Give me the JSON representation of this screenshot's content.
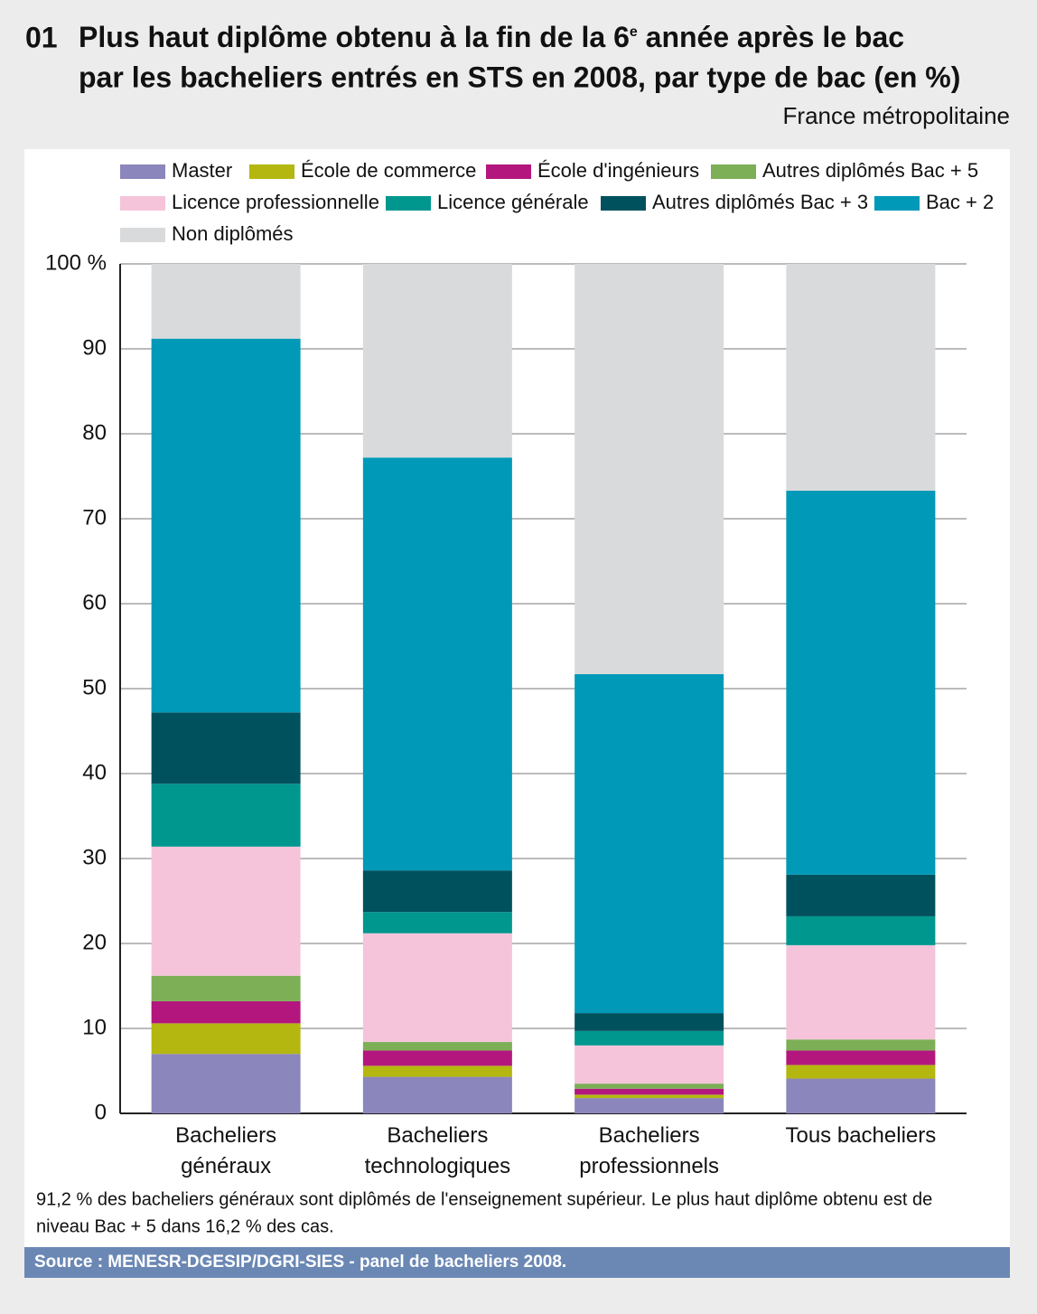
{
  "chart_data": {
    "type": "stacked_bar",
    "number": "01",
    "title": [
      "Plus haut diplôme obtenu à la fin de la 6",
      "e",
      " année après le bac",
      "par les bacheliers entrés en STS en 2008, par type de bac (en %)"
    ],
    "subtitle": "France métropolitaine",
    "categories": [
      [
        "Bacheliers",
        "généraux"
      ],
      [
        "Bacheliers",
        "technologiques"
      ],
      [
        "Bacheliers",
        "professionnels"
      ],
      [
        "Tous bacheliers"
      ]
    ],
    "series": [
      {
        "name": "Master",
        "color": "#8b86bb",
        "values": [
          7.0,
          4.3,
          1.8,
          4.1
        ]
      },
      {
        "name": "École de commerce",
        "color": "#b3b70f",
        "values": [
          3.6,
          1.3,
          0.4,
          1.6
        ]
      },
      {
        "name": "École d'ingénieurs",
        "color": "#b3177e",
        "values": [
          2.6,
          1.8,
          0.7,
          1.7
        ]
      },
      {
        "name": "Autres diplômés Bac + 5",
        "color": "#7daf56",
        "values": [
          3.0,
          1.0,
          0.6,
          1.3
        ]
      },
      {
        "name": "Licence professionnelle",
        "color": "#f5c4da",
        "values": [
          15.2,
          12.8,
          4.5,
          11.1
        ]
      },
      {
        "name": "Licence générale",
        "color": "#00978f",
        "values": [
          7.4,
          2.5,
          1.7,
          3.4
        ]
      },
      {
        "name": "Autres diplômés Bac + 3",
        "color": "#00515e",
        "values": [
          8.4,
          4.9,
          2.1,
          4.9
        ]
      },
      {
        "name": "Bac + 2",
        "color": "#0099b8",
        "values": [
          44.0,
          48.6,
          39.9,
          45.2
        ]
      },
      {
        "name": "Non diplômés",
        "color": "#d9dadc",
        "values": [
          8.8,
          22.8,
          48.3,
          26.7
        ]
      }
    ],
    "ylim": [
      0,
      100
    ],
    "yticks": [
      0,
      10,
      20,
      30,
      40,
      50,
      60,
      70,
      80,
      90,
      {
        "value": 100,
        "label": "100 %"
      }
    ],
    "grid": true,
    "note": [
      "91,2 % des bacheliers généraux sont diplômés de l'enseignement supérieur. Le plus haut diplôme obtenu est de",
      "niveau Bac + 5 dans 16,2 % des cas."
    ],
    "source": "Source : MENESR-DGESIP/DGRI-SIES - panel de bacheliers 2008."
  }
}
